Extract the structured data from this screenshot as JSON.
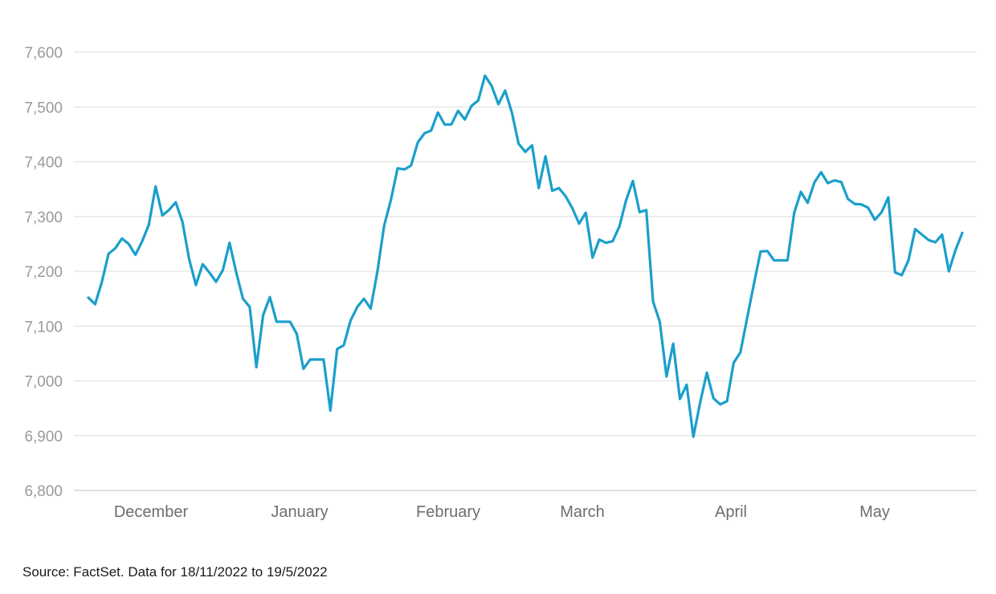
{
  "source_note": "Source: FactSet. Data for 18/11/2022 to 19/5/2022",
  "colors": {
    "line": "#1a9fcb",
    "grid": "#e2e2e2",
    "tick_text": "#9a9a9a",
    "month_text": "#6e6e6e"
  },
  "chart_data": {
    "type": "line",
    "title": "",
    "xlabel": "",
    "ylabel": "",
    "ylim": [
      6800,
      7600
    ],
    "yticks": [
      6800,
      6900,
      7000,
      7100,
      7200,
      7300,
      7400,
      7500,
      7600
    ],
    "ytick_labels": [
      "6,800",
      "6,900",
      "7,000",
      "7,100",
      "7,200",
      "7,300",
      "7,400",
      "7,500",
      "7,600"
    ],
    "grid": true,
    "months": [
      "December",
      "January",
      "February",
      "March",
      "April",
      "May"
    ],
    "series": [
      {
        "values": [
          7152,
          7140,
          7180,
          7232,
          7242,
          7260,
          7250,
          7230,
          7255,
          7285,
          7355,
          7302,
          7312,
          7326,
          7290,
          7222,
          7175,
          7213,
          7198,
          7181,
          7202,
          7252,
          7198,
          7150,
          7135,
          7025,
          7120,
          7153,
          7108,
          7108,
          7108,
          7086,
          7022,
          7039,
          7039,
          7039,
          6946,
          7058,
          7065,
          7110,
          7135,
          7150,
          7132,
          7200,
          7283,
          7330,
          7388,
          7386,
          7393,
          7435,
          7452,
          7457,
          7490,
          7468,
          7468,
          7493,
          7477,
          7502,
          7512,
          7557,
          7538,
          7505,
          7530,
          7490,
          7433,
          7418,
          7430,
          7352,
          7410,
          7347,
          7352,
          7337,
          7315,
          7287,
          7307,
          7225,
          7258,
          7252,
          7255,
          7282,
          7330,
          7365,
          7308,
          7312,
          7145,
          7108,
          7008,
          7068,
          6967,
          6993,
          6898,
          6960,
          7015,
          6968,
          6957,
          6963,
          7033,
          7052,
          7115,
          7177,
          7236,
          7237,
          7220,
          7220,
          7220,
          7307,
          7345,
          7325,
          7362,
          7381,
          7361,
          7366,
          7363,
          7332,
          7323,
          7322,
          7316,
          7294,
          7308,
          7335,
          7198,
          7193,
          7220,
          7277,
          7267,
          7257,
          7253,
          7267,
          7200,
          7239,
          7270
        ]
      }
    ]
  }
}
